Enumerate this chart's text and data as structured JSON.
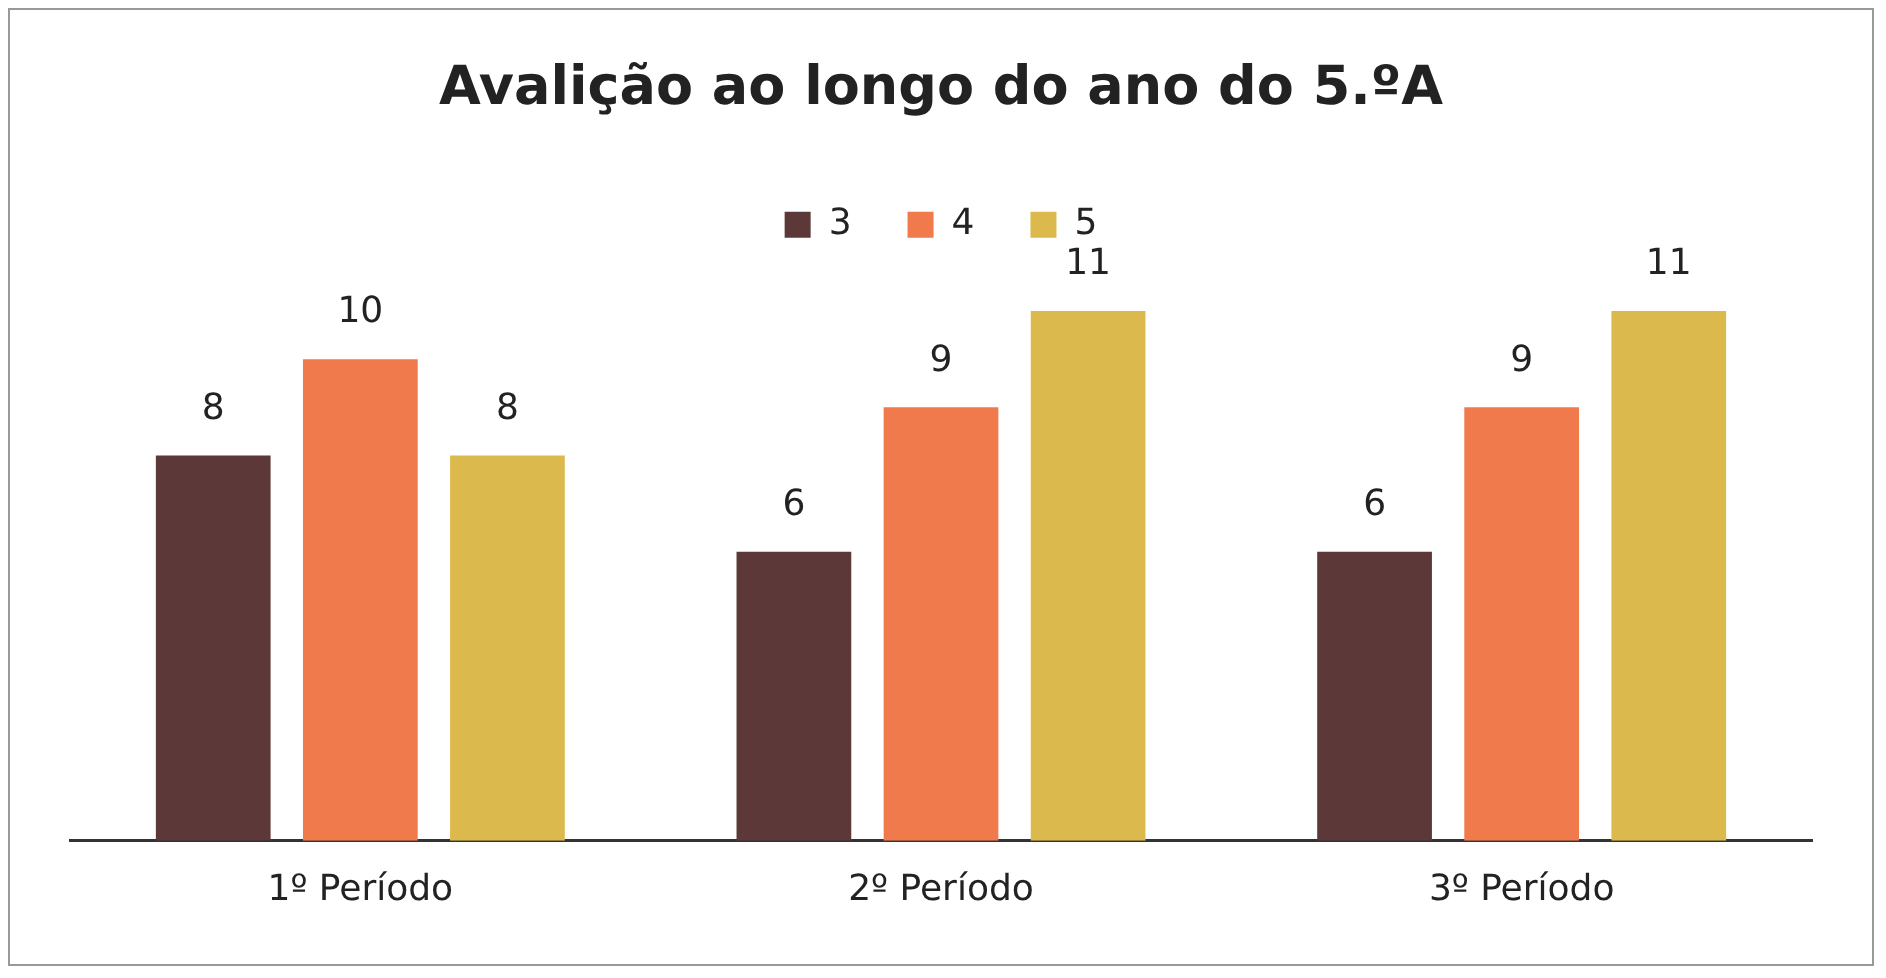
{
  "chart_data": {
    "type": "bar",
    "title": "Avalição ao longo do ano do 5.ºA",
    "categories": [
      "1º Período",
      "2º Período",
      "3º Período"
    ],
    "series": [
      {
        "name": "3",
        "color": "#5c3838",
        "values": [
          8,
          6,
          6
        ]
      },
      {
        "name": "4",
        "color": "#f07a4c",
        "values": [
          10,
          9,
          9
        ]
      },
      {
        "name": "5",
        "color": "#dcb94c",
        "values": [
          8,
          11,
          11
        ]
      }
    ],
    "tick_labels": "x",
    "grid": false,
    "legend": "top",
    "data_labels": true
  }
}
